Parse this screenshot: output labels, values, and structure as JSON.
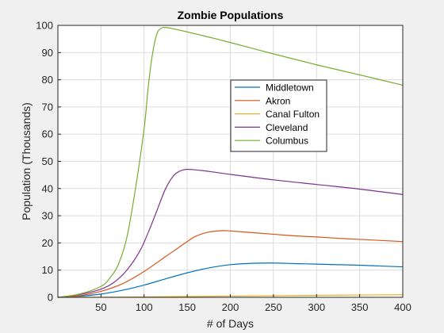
{
  "chart_data": {
    "type": "line",
    "title": "Zombie Populations",
    "xlabel": "# of Days",
    "ylabel": "Population (Thousands)",
    "xlim": [
      0,
      400
    ],
    "ylim": [
      0,
      100
    ],
    "x_ticks": [
      50,
      100,
      150,
      200,
      250,
      300,
      350,
      400
    ],
    "y_ticks": [
      0,
      10,
      20,
      30,
      40,
      50,
      60,
      70,
      80,
      90,
      100
    ],
    "grid": true,
    "legend_position": "upper-middle-right",
    "background": "#ffffff",
    "figure_background": "#f0f0f0",
    "series": [
      {
        "name": "Middletown",
        "color": "#0072BD",
        "x": [
          0,
          25,
          50,
          75,
          100,
          125,
          150,
          175,
          200,
          225,
          250,
          275,
          300,
          325,
          350,
          375,
          400
        ],
        "y": [
          0,
          0.4,
          1.2,
          2.6,
          4.5,
          6.8,
          9.0,
          10.8,
          12.0,
          12.5,
          12.6,
          12.4,
          12.2,
          12.0,
          11.8,
          11.5,
          11.2
        ]
      },
      {
        "name": "Akron",
        "color": "#D95319",
        "x": [
          0,
          25,
          50,
          75,
          100,
          125,
          150,
          160,
          175,
          190,
          200,
          225,
          250,
          275,
          300,
          325,
          350,
          375,
          400
        ],
        "y": [
          0,
          0.6,
          2.2,
          5.0,
          9.5,
          15.0,
          20.5,
          22.5,
          24.0,
          24.5,
          24.4,
          23.8,
          23.2,
          22.6,
          22.2,
          21.7,
          21.3,
          20.9,
          20.5
        ]
      },
      {
        "name": "Canal Fulton",
        "color": "#EDB120",
        "x": [
          0,
          50,
          100,
          150,
          200,
          250,
          300,
          350,
          400
        ],
        "y": [
          0,
          0.05,
          0.15,
          0.3,
          0.45,
          0.6,
          0.75,
          0.85,
          0.95
        ]
      },
      {
        "name": "Cleveland",
        "color": "#7E2F8E",
        "x": [
          0,
          25,
          50,
          65,
          80,
          95,
          105,
          115,
          125,
          135,
          145,
          155,
          175,
          200,
          250,
          300,
          350,
          400
        ],
        "y": [
          0,
          1.0,
          3.0,
          5.5,
          10.0,
          17.0,
          24.0,
          32.0,
          40.0,
          45.0,
          46.8,
          47.0,
          46.3,
          45.2,
          43.2,
          41.5,
          39.8,
          37.8
        ]
      },
      {
        "name": "Columbus",
        "color": "#77AC30",
        "x": [
          0,
          25,
          50,
          60,
          70,
          80,
          90,
          100,
          105,
          110,
          115,
          120,
          125,
          130,
          140,
          150,
          175,
          200,
          250,
          300,
          350,
          400
        ],
        "y": [
          0,
          1.2,
          4.0,
          7.0,
          12.0,
          22.0,
          40.0,
          62.0,
          78.0,
          90.0,
          97.0,
          99.0,
          99.2,
          99.0,
          98.3,
          97.6,
          95.7,
          93.7,
          89.5,
          85.5,
          81.8,
          78.0
        ]
      }
    ]
  }
}
